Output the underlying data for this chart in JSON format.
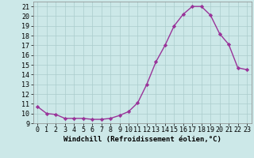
{
  "x": [
    0,
    1,
    2,
    3,
    4,
    5,
    6,
    7,
    8,
    9,
    10,
    11,
    12,
    13,
    14,
    15,
    16,
    17,
    18,
    19,
    20,
    21,
    22,
    23
  ],
  "y": [
    10.7,
    10.0,
    9.9,
    9.5,
    9.5,
    9.5,
    9.4,
    9.4,
    9.5,
    9.8,
    10.2,
    11.1,
    13.0,
    15.3,
    17.0,
    19.0,
    20.2,
    21.0,
    21.0,
    20.1,
    18.2,
    17.1,
    14.7,
    14.5
  ],
  "line_color": "#993399",
  "marker": "D",
  "marker_size": 2.2,
  "bg_color": "#cce8e8",
  "grid_color": "#aacccc",
  "xlabel": "Windchill (Refroidissement éolien,°C)",
  "xlim_min": -0.5,
  "xlim_max": 23.5,
  "ylim_min": 9,
  "ylim_max": 21.5,
  "xticks": [
    0,
    1,
    2,
    3,
    4,
    5,
    6,
    7,
    8,
    9,
    10,
    11,
    12,
    13,
    14,
    15,
    16,
    17,
    18,
    19,
    20,
    21,
    22,
    23
  ],
  "yticks": [
    9,
    10,
    11,
    12,
    13,
    14,
    15,
    16,
    17,
    18,
    19,
    20,
    21
  ],
  "xlabel_fontsize": 6.5,
  "tick_fontsize": 6.0,
  "line_width": 1.0,
  "spine_color": "#888888"
}
